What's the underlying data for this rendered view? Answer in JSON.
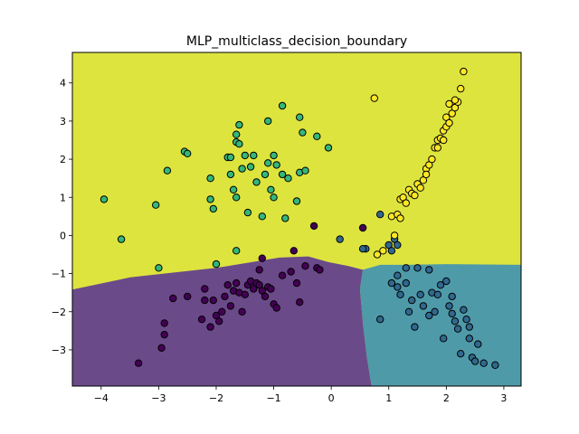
{
  "chart_data": {
    "type": "scatter",
    "title": "MLP_multiclass_decision_boundary",
    "xlabel": "",
    "ylabel": "",
    "xlim": [
      -4.5,
      3.3
    ],
    "ylim": [
      -3.95,
      4.8
    ],
    "xticks": [
      -4,
      -3,
      -2,
      -1,
      0,
      1,
      2,
      3
    ],
    "yticks": [
      -3,
      -2,
      -1,
      0,
      1,
      2,
      3,
      4
    ],
    "grid": false,
    "legend": "none",
    "class_colors": [
      "#440154",
      "#31688e",
      "#35b779",
      "#fde725"
    ],
    "region_colors": [
      "#6b4a8a",
      "#4f9aa8",
      "#5dbf95",
      "#dde43e"
    ],
    "regions": [
      {
        "class": 3,
        "polygon": [
          [
            -4.5,
            4.8
          ],
          [
            3.3,
            4.8
          ],
          [
            3.3,
            -3.95
          ],
          [
            -4.5,
            -3.95
          ]
        ]
      },
      {
        "class": 0,
        "polygon": [
          [
            -4.5,
            -1.42
          ],
          [
            -3.5,
            -1.1
          ],
          [
            -2.0,
            -0.85
          ],
          [
            -0.9,
            -0.58
          ],
          [
            -0.4,
            -0.55
          ],
          [
            -0.05,
            -0.7
          ],
          [
            0.3,
            -0.8
          ],
          [
            0.55,
            -0.9
          ],
          [
            0.5,
            -1.4
          ],
          [
            0.55,
            -2.3
          ],
          [
            0.62,
            -3.2
          ],
          [
            0.7,
            -3.95
          ],
          [
            -4.5,
            -3.95
          ]
        ]
      },
      {
        "class": 1,
        "polygon": [
          [
            0.55,
            -0.9
          ],
          [
            0.85,
            -0.77
          ],
          [
            1.3,
            -0.77
          ],
          [
            2.0,
            -0.75
          ],
          [
            3.3,
            -0.77
          ],
          [
            3.3,
            -3.95
          ],
          [
            0.7,
            -3.95
          ],
          [
            0.62,
            -3.2
          ],
          [
            0.55,
            -2.3
          ],
          [
            0.5,
            -1.4
          ]
        ]
      }
    ],
    "series": [
      {
        "class": 0,
        "points": [
          [
            -3.35,
            -3.35
          ],
          [
            -2.9,
            -2.3
          ],
          [
            -2.9,
            -2.6
          ],
          [
            -2.95,
            -2.95
          ],
          [
            -2.75,
            -1.65
          ],
          [
            -2.5,
            -1.6
          ],
          [
            -2.25,
            -2.2
          ],
          [
            -2.2,
            -1.4
          ],
          [
            -2.2,
            -1.7
          ],
          [
            -2.1,
            -2.4
          ],
          [
            -2.05,
            -1.7
          ],
          [
            -2.0,
            -2.1
          ],
          [
            -1.95,
            -2.25
          ],
          [
            -1.9,
            -2.0
          ],
          [
            -1.85,
            -1.6
          ],
          [
            -1.8,
            -1.3
          ],
          [
            -1.75,
            -1.85
          ],
          [
            -1.7,
            -1.45
          ],
          [
            -1.65,
            -1.25
          ],
          [
            -1.6,
            -1.5
          ],
          [
            -1.55,
            -2.0
          ],
          [
            -1.5,
            -1.55
          ],
          [
            -1.45,
            -1.3
          ],
          [
            -1.4,
            -1.2
          ],
          [
            -1.35,
            -1.4
          ],
          [
            -1.3,
            -1.25
          ],
          [
            -1.25,
            -1.3
          ],
          [
            -1.2,
            -1.45
          ],
          [
            -1.15,
            -1.6
          ],
          [
            -1.1,
            -1.35
          ],
          [
            -1.05,
            -1.4
          ],
          [
            -1.0,
            -1.8
          ],
          [
            -0.95,
            -1.9
          ],
          [
            -0.85,
            -1.05
          ],
          [
            -0.7,
            -0.95
          ],
          [
            -0.65,
            -0.4
          ],
          [
            -0.6,
            -1.25
          ],
          [
            -0.55,
            -1.75
          ],
          [
            -0.45,
            -0.8
          ],
          [
            -0.3,
            0.25
          ],
          [
            -0.25,
            -0.85
          ],
          [
            -0.2,
            -0.9
          ],
          [
            -1.2,
            -0.6
          ],
          [
            -1.25,
            -0.9
          ],
          [
            0.55,
            0.2
          ]
        ]
      },
      {
        "class": 1,
        "points": [
          [
            0.6,
            -0.35
          ],
          [
            0.85,
            0.55
          ],
          [
            1.0,
            -0.25
          ],
          [
            1.05,
            -0.4
          ],
          [
            1.1,
            -0.1
          ],
          [
            1.15,
            -0.25
          ],
          [
            1.05,
            -1.25
          ],
          [
            1.15,
            -1.05
          ],
          [
            1.15,
            -1.35
          ],
          [
            1.2,
            -1.55
          ],
          [
            1.3,
            -0.85
          ],
          [
            1.3,
            -1.25
          ],
          [
            1.35,
            -2.0
          ],
          [
            1.4,
            -1.7
          ],
          [
            1.45,
            -2.4
          ],
          [
            1.5,
            -0.85
          ],
          [
            1.55,
            -1.55
          ],
          [
            1.6,
            -1.85
          ],
          [
            1.7,
            -0.9
          ],
          [
            1.7,
            -2.1
          ],
          [
            1.75,
            -1.5
          ],
          [
            1.8,
            -2.0
          ],
          [
            1.85,
            -1.55
          ],
          [
            1.9,
            -1.3
          ],
          [
            1.95,
            -2.7
          ],
          [
            2.0,
            -1.2
          ],
          [
            2.05,
            -1.85
          ],
          [
            2.1,
            -1.6
          ],
          [
            2.1,
            -2.05
          ],
          [
            2.15,
            -2.25
          ],
          [
            2.2,
            -2.45
          ],
          [
            2.25,
            -3.1
          ],
          [
            2.3,
            -1.95
          ],
          [
            2.35,
            -2.2
          ],
          [
            2.4,
            -2.4
          ],
          [
            2.4,
            -2.7
          ],
          [
            2.45,
            -3.2
          ],
          [
            2.5,
            -3.3
          ],
          [
            2.55,
            -2.85
          ],
          [
            2.65,
            -3.35
          ],
          [
            2.85,
            -3.4
          ],
          [
            0.55,
            -0.35
          ],
          [
            0.15,
            -0.1
          ],
          [
            0.85,
            -2.2
          ]
        ]
      },
      {
        "class": 2,
        "points": [
          [
            -3.95,
            0.95
          ],
          [
            -3.65,
            -0.1
          ],
          [
            -3.05,
            0.8
          ],
          [
            -3.0,
            -0.85
          ],
          [
            -2.85,
            1.7
          ],
          [
            -2.55,
            2.2
          ],
          [
            -2.5,
            2.15
          ],
          [
            -2.1,
            1.5
          ],
          [
            -2.1,
            0.95
          ],
          [
            -2.05,
            0.7
          ],
          [
            -2.0,
            -0.75
          ],
          [
            -1.8,
            2.05
          ],
          [
            -1.75,
            1.6
          ],
          [
            -1.75,
            2.05
          ],
          [
            -1.7,
            1.2
          ],
          [
            -1.65,
            1.0
          ],
          [
            -1.65,
            2.45
          ],
          [
            -1.6,
            2.4
          ],
          [
            -1.55,
            1.75
          ],
          [
            -1.5,
            2.1
          ],
          [
            -1.45,
            0.6
          ],
          [
            -1.4,
            1.8
          ],
          [
            -1.35,
            2.1
          ],
          [
            -1.3,
            1.4
          ],
          [
            -1.2,
            0.5
          ],
          [
            -1.15,
            1.6
          ],
          [
            -1.1,
            1.9
          ],
          [
            -1.05,
            1.2
          ],
          [
            -1.0,
            2.1
          ],
          [
            -1.0,
            1.0
          ],
          [
            -0.95,
            1.85
          ],
          [
            -0.85,
            3.4
          ],
          [
            -0.85,
            1.6
          ],
          [
            -0.8,
            0.45
          ],
          [
            -0.75,
            1.5
          ],
          [
            -0.6,
            0.9
          ],
          [
            -0.55,
            1.65
          ],
          [
            -0.55,
            3.1
          ],
          [
            -0.5,
            2.7
          ],
          [
            -0.45,
            1.7
          ],
          [
            -0.25,
            2.6
          ],
          [
            -0.05,
            2.3
          ],
          [
            -1.1,
            3.0
          ],
          [
            -1.6,
            2.9
          ],
          [
            -1.65,
            2.65
          ],
          [
            -1.65,
            -0.4
          ]
        ]
      },
      {
        "class": 3,
        "points": [
          [
            0.75,
            3.6
          ],
          [
            0.8,
            -0.5
          ],
          [
            0.9,
            -0.4
          ],
          [
            1.05,
            0.5
          ],
          [
            1.1,
            0.0
          ],
          [
            1.15,
            0.55
          ],
          [
            1.2,
            0.45
          ],
          [
            1.2,
            0.95
          ],
          [
            1.25,
            1.0
          ],
          [
            1.3,
            0.85
          ],
          [
            1.35,
            1.2
          ],
          [
            1.4,
            1.1
          ],
          [
            1.45,
            1.05
          ],
          [
            1.5,
            1.35
          ],
          [
            1.55,
            1.25
          ],
          [
            1.6,
            1.45
          ],
          [
            1.65,
            1.75
          ],
          [
            1.7,
            1.85
          ],
          [
            1.75,
            2.0
          ],
          [
            1.8,
            2.3
          ],
          [
            1.85,
            2.5
          ],
          [
            1.9,
            2.55
          ],
          [
            1.95,
            2.75
          ],
          [
            2.0,
            2.85
          ],
          [
            2.0,
            3.1
          ],
          [
            2.05,
            2.95
          ],
          [
            2.1,
            3.2
          ],
          [
            2.15,
            3.35
          ],
          [
            2.2,
            3.5
          ],
          [
            2.25,
            3.85
          ],
          [
            2.3,
            4.3
          ],
          [
            1.65,
            1.6
          ],
          [
            1.85,
            2.3
          ],
          [
            1.95,
            2.5
          ],
          [
            2.05,
            3.45
          ],
          [
            2.15,
            3.55
          ]
        ]
      }
    ]
  }
}
